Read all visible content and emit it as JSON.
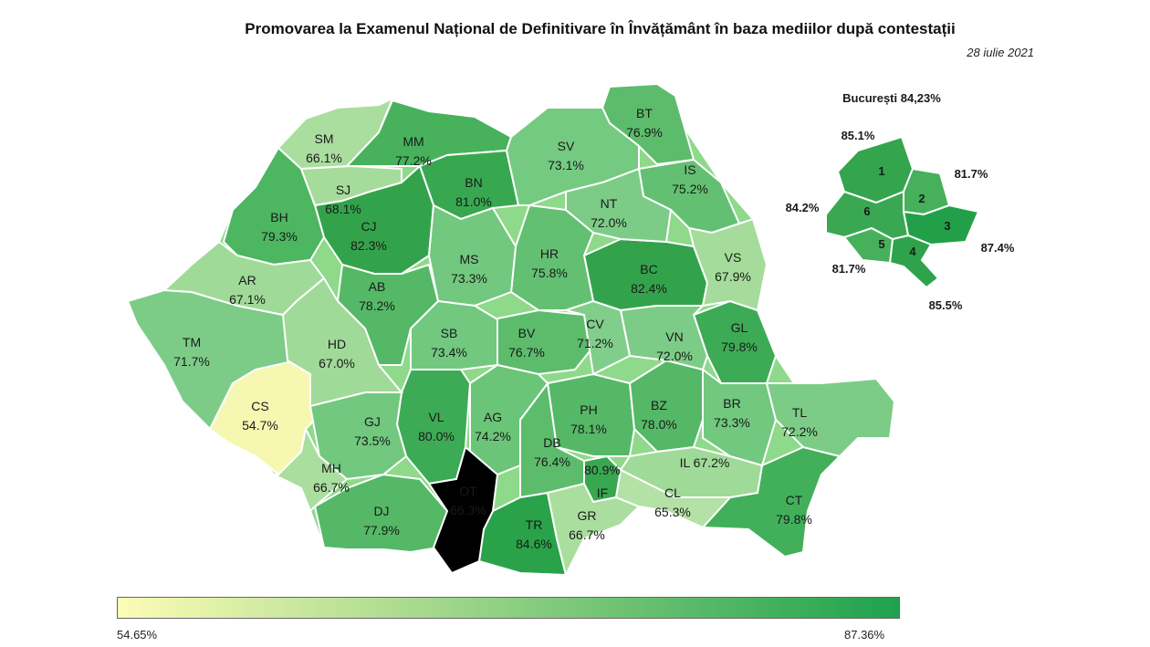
{
  "title": "Promovarea la Examenul Național de Definitivare în Învățământ în baza mediilor după contestații",
  "date": "28 iulie 2021",
  "bucharest": {
    "title": "București 84,23%",
    "sectors": [
      {
        "id": "1",
        "value": "85.1%"
      },
      {
        "id": "2",
        "value": "81.7%"
      },
      {
        "id": "3",
        "value": "87.4%"
      },
      {
        "id": "4",
        "value": "85.5%"
      },
      {
        "id": "5",
        "value": "81.7%"
      },
      {
        "id": "6",
        "value": "84.2%"
      }
    ]
  },
  "legend": {
    "min": "54.65%",
    "max": "87.36%",
    "color_min": "#fcfcb6",
    "color_max": "#1fa24d"
  },
  "counties": [
    {
      "code": "SM",
      "value": "66.1%"
    },
    {
      "code": "MM",
      "value": "77.2%"
    },
    {
      "code": "BT",
      "value": "76.9%"
    },
    {
      "code": "SV",
      "value": "73.1%"
    },
    {
      "code": "SJ",
      "value": "68.1%"
    },
    {
      "code": "BN",
      "value": "81.0%"
    },
    {
      "code": "IS",
      "value": "75.2%"
    },
    {
      "code": "NT",
      "value": "72.0%"
    },
    {
      "code": "BH",
      "value": "79.3%"
    },
    {
      "code": "CJ",
      "value": "82.3%"
    },
    {
      "code": "MS",
      "value": "73.3%"
    },
    {
      "code": "HR",
      "value": "75.8%"
    },
    {
      "code": "BC",
      "value": "82.4%"
    },
    {
      "code": "VS",
      "value": "67.9%"
    },
    {
      "code": "AR",
      "value": "67.1%"
    },
    {
      "code": "AB",
      "value": "78.2%"
    },
    {
      "code": "SB",
      "value": "73.4%"
    },
    {
      "code": "BV",
      "value": "76.7%"
    },
    {
      "code": "CV",
      "value": "71.2%"
    },
    {
      "code": "VN",
      "value": "72.0%"
    },
    {
      "code": "GL",
      "value": "79.8%"
    },
    {
      "code": "TM",
      "value": "71.7%"
    },
    {
      "code": "HD",
      "value": "67.0%"
    },
    {
      "code": "CS",
      "value": "54.7%"
    },
    {
      "code": "GJ",
      "value": "73.5%"
    },
    {
      "code": "VL",
      "value": "80.0%"
    },
    {
      "code": "AG",
      "value": "74.2%"
    },
    {
      "code": "PH",
      "value": "78.1%"
    },
    {
      "code": "BZ",
      "value": "78.0%"
    },
    {
      "code": "BR",
      "value": "73.3%"
    },
    {
      "code": "TL",
      "value": "72.2%"
    },
    {
      "code": "MH",
      "value": "66.7%"
    },
    {
      "code": "DB",
      "value": "76.4%"
    },
    {
      "code": "IF",
      "value": "80.9%"
    },
    {
      "code": "IL",
      "value": "67.2%"
    },
    {
      "code": "DJ",
      "value": "77.9%"
    },
    {
      "code": "OT",
      "value": "66.3%"
    },
    {
      "code": "TR",
      "value": "84.6%"
    },
    {
      "code": "GR",
      "value": "66.7%"
    },
    {
      "code": "CL",
      "value": "65.3%"
    },
    {
      "code": "CT",
      "value": "79.8%"
    }
  ]
}
